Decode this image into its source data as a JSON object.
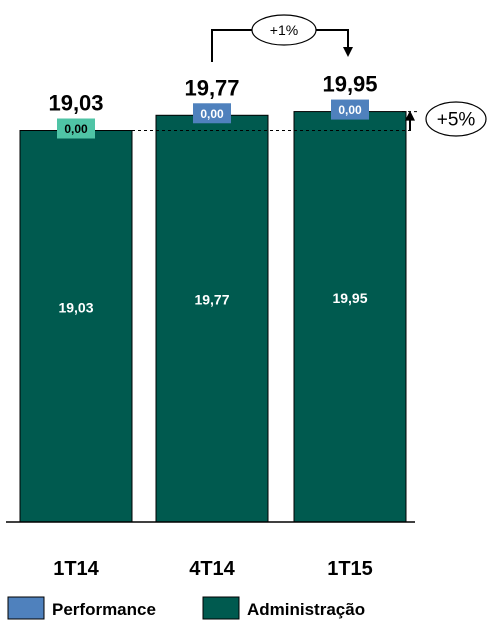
{
  "chart_data": {
    "type": "bar",
    "categories": [
      "1T14",
      "4T14",
      "1T15"
    ],
    "series": [
      {
        "name": "Administração",
        "values": [
          19.03,
          19.77,
          19.95
        ],
        "labels": [
          "19,03",
          "19,77",
          "19,95"
        ],
        "color": "#005a4f"
      },
      {
        "name": "Performance",
        "values": [
          0.0,
          0.0,
          0.0
        ],
        "labels": [
          "0,00",
          "0,00",
          "0,00"
        ],
        "color": "#4f81bd"
      }
    ],
    "totals": [
      "19,03",
      "19,77",
      "19,95"
    ],
    "perf_label_bg": [
      "#4fc4a6",
      "#4f81bd",
      "#4f81bd"
    ],
    "ylim": [
      0,
      21
    ],
    "annotations": {
      "qoq": "+1%",
      "yoy": "+5%"
    },
    "legend": {
      "position": "bottom",
      "items": [
        "Performance",
        "Administração"
      ]
    },
    "grid": false
  }
}
